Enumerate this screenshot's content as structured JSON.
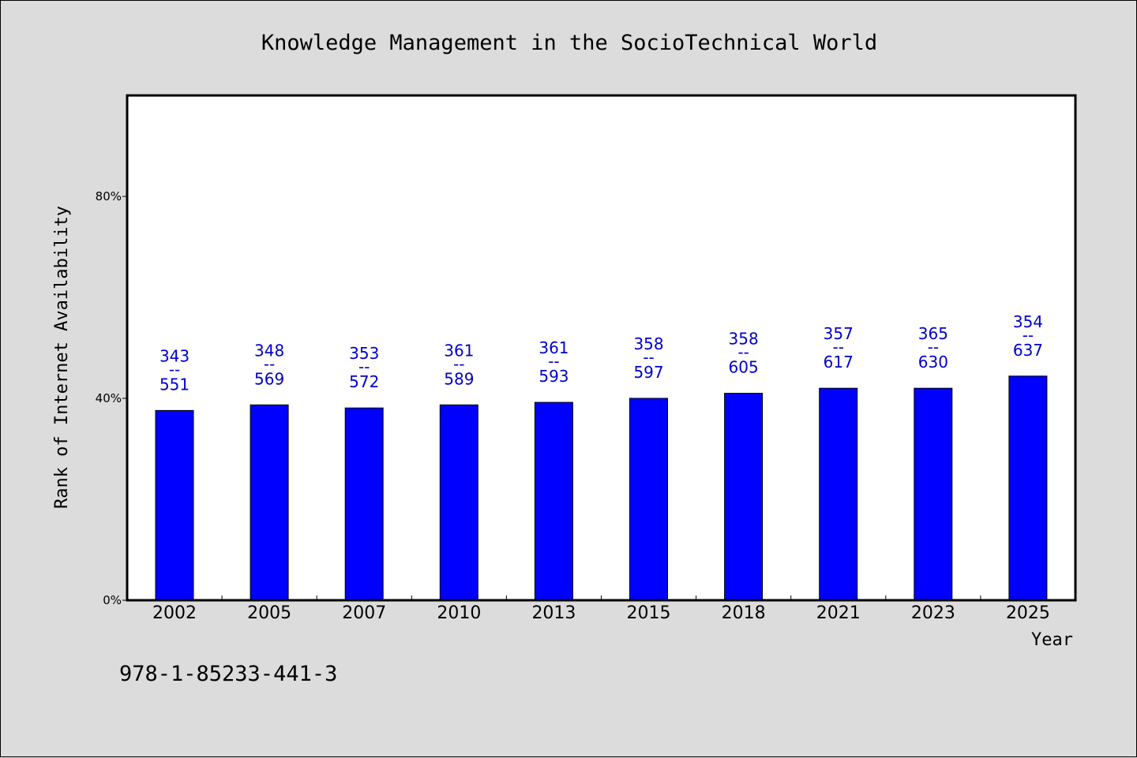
{
  "chart_data": {
    "type": "bar",
    "title": "Knowledge Management in the SocioTechnical World",
    "xlabel": "Year",
    "ylabel": "Rank of Internet Availability",
    "categories": [
      "2002",
      "2005",
      "2007",
      "2010",
      "2013",
      "2015",
      "2018",
      "2021",
      "2023",
      "2025"
    ],
    "values": [
      37.6,
      38.7,
      38.1,
      38.7,
      39.2,
      40.0,
      41.0,
      42.0,
      42.0,
      44.4
    ],
    "value_unit": "%",
    "data_labels": [
      {
        "top": "343",
        "sep": "--",
        "bottom": "551"
      },
      {
        "top": "348",
        "sep": "--",
        "bottom": "569"
      },
      {
        "top": "353",
        "sep": "--",
        "bottom": "572"
      },
      {
        "top": "361",
        "sep": "--",
        "bottom": "589"
      },
      {
        "top": "361",
        "sep": "--",
        "bottom": "593"
      },
      {
        "top": "358",
        "sep": "--",
        "bottom": "597"
      },
      {
        "top": "358",
        "sep": "--",
        "bottom": "605"
      },
      {
        "top": "357",
        "sep": "--",
        "bottom": "617"
      },
      {
        "top": "365",
        "sep": "--",
        "bottom": "630"
      },
      {
        "top": "354",
        "sep": "--",
        "bottom": "637"
      }
    ],
    "ylim": [
      0,
      100
    ],
    "yticks": [
      {
        "value": 0,
        "label": "0%"
      },
      {
        "value": 40,
        "label": "40%"
      },
      {
        "value": 80,
        "label": "80%"
      }
    ],
    "grid": false,
    "legend": "none",
    "bar_color": "#0000ff",
    "label_color": "#0000cc"
  },
  "footer": {
    "isbn": "978-1-85233-441-3"
  },
  "colors": {
    "background": "#dcdcdc",
    "plot_background": "#ffffff"
  }
}
